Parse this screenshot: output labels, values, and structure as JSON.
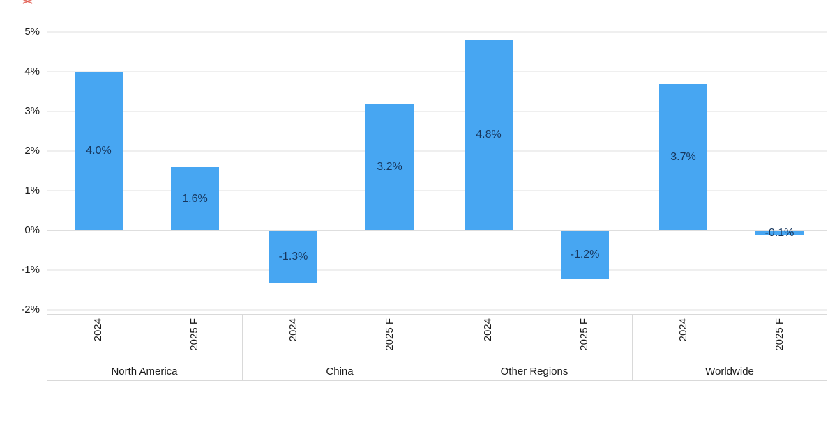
{
  "artifact": {
    "icon": "red-scribble-fragment-icon"
  },
  "chart_data": {
    "type": "bar",
    "title": "",
    "xlabel": "",
    "ylabel": "",
    "ylim": [
      -2,
      5
    ],
    "grid": "horizontal",
    "legend": "none",
    "bar_color": "#47A6F2",
    "bar_label_color": "#17365D",
    "axis_text_color": "#1b1b1b",
    "gridline_color": "#efefef",
    "axis_box_border_color": "#d9d9d9",
    "y_ticks": [
      {
        "value": 5,
        "label": "5%"
      },
      {
        "value": 4,
        "label": "4%"
      },
      {
        "value": 3,
        "label": "3%"
      },
      {
        "value": 2,
        "label": "2%"
      },
      {
        "value": 1,
        "label": "1%"
      },
      {
        "value": 0,
        "label": "0%"
      },
      {
        "value": -1,
        "label": "-1%"
      },
      {
        "value": -2,
        "label": "-2%"
      }
    ],
    "categories": [
      "North America",
      "China",
      "Other Regions",
      "Worldwide"
    ],
    "series_labels": [
      "2024",
      "2025 F"
    ],
    "groups": [
      {
        "label": "North America",
        "bars": [
          {
            "x": "2024",
            "value": 4.0,
            "label": "4.0%"
          },
          {
            "x": "2025 F",
            "value": 1.6,
            "label": "1.6%"
          }
        ]
      },
      {
        "label": "China",
        "bars": [
          {
            "x": "2024",
            "value": -1.3,
            "label": "-1.3%"
          },
          {
            "x": "2025 F",
            "value": 3.2,
            "label": "3.2%"
          }
        ]
      },
      {
        "label": "Other Regions",
        "bars": [
          {
            "x": "2024",
            "value": 4.8,
            "label": "4.8%"
          },
          {
            "x": "2025 F",
            "value": -1.2,
            "label": "-1.2%"
          }
        ]
      },
      {
        "label": "Worldwide",
        "bars": [
          {
            "x": "2024",
            "value": 3.7,
            "label": "3.7%"
          },
          {
            "x": "2025 F",
            "value": -0.1,
            "label": "-0.1%"
          }
        ]
      }
    ]
  }
}
